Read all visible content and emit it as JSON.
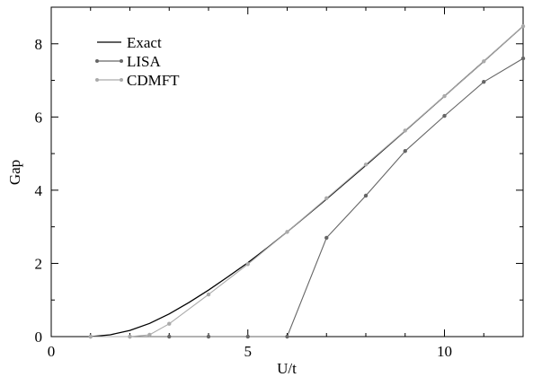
{
  "chart_data": {
    "type": "line",
    "xlabel": "U/t",
    "ylabel": "Gap",
    "xlim": [
      0,
      12
    ],
    "ylim": [
      0,
      9
    ],
    "xticks": [
      0,
      5,
      10
    ],
    "yticks": [
      0,
      2,
      4,
      6,
      8
    ],
    "xtick_labels": [
      "0",
      "5",
      "10"
    ],
    "ytick_labels": [
      "0",
      "2",
      "4",
      "6",
      "8"
    ],
    "grid": false,
    "legend_position": "top-left",
    "series": [
      {
        "name": "Exact",
        "color": "#000000",
        "marker": "none",
        "x": [
          1.0,
          1.5,
          2.0,
          2.5,
          3.0,
          3.5,
          4.0,
          4.5,
          5.0,
          5.5,
          6.0,
          7.0,
          8.0,
          9.0,
          10.0,
          11.0,
          12.0
        ],
        "y": [
          0.0,
          0.05,
          0.17,
          0.36,
          0.62,
          0.93,
          1.27,
          1.64,
          2.02,
          2.43,
          2.86,
          3.76,
          4.68,
          5.62,
          6.57,
          7.52,
          8.48
        ]
      },
      {
        "name": "LISA",
        "color": "#666666",
        "marker": "circle",
        "x": [
          1,
          2,
          3,
          4,
          5,
          6,
          7,
          8,
          9,
          10,
          11,
          12
        ],
        "y": [
          0,
          0,
          0,
          0,
          0,
          0,
          2.7,
          3.85,
          5.07,
          6.03,
          6.96,
          7.6
        ]
      },
      {
        "name": "CDMFT",
        "color": "#aaaaaa",
        "marker": "circle",
        "x": [
          1,
          2,
          2.5,
          3,
          4,
          5,
          6,
          7,
          8,
          9,
          10,
          11,
          12
        ],
        "y": [
          0,
          0,
          0.05,
          0.35,
          1.15,
          1.98,
          2.86,
          3.78,
          4.7,
          5.63,
          6.57,
          7.52,
          8.48
        ]
      }
    ]
  }
}
